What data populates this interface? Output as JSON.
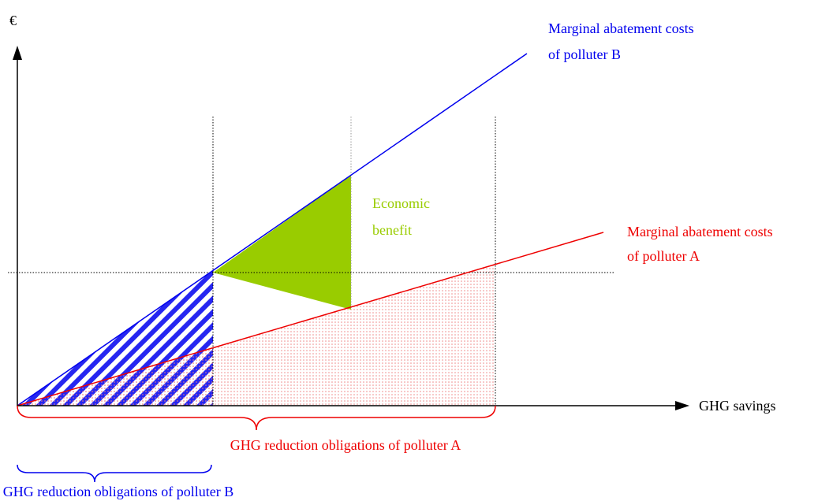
{
  "axes": {
    "y_label": "€",
    "x_label": "GHG savings"
  },
  "curves": {
    "polluter_b": [
      "Marginal abatement costs",
      "of polluter B"
    ],
    "polluter_a": [
      "Marginal abatement costs",
      "of polluter A"
    ]
  },
  "area": [
    "Economic",
    "benefit"
  ],
  "obligations": {
    "polluter_a": "GHG reduction obligations of polluter A",
    "polluter_b": "GHG reduction obligations of polluter B"
  }
}
